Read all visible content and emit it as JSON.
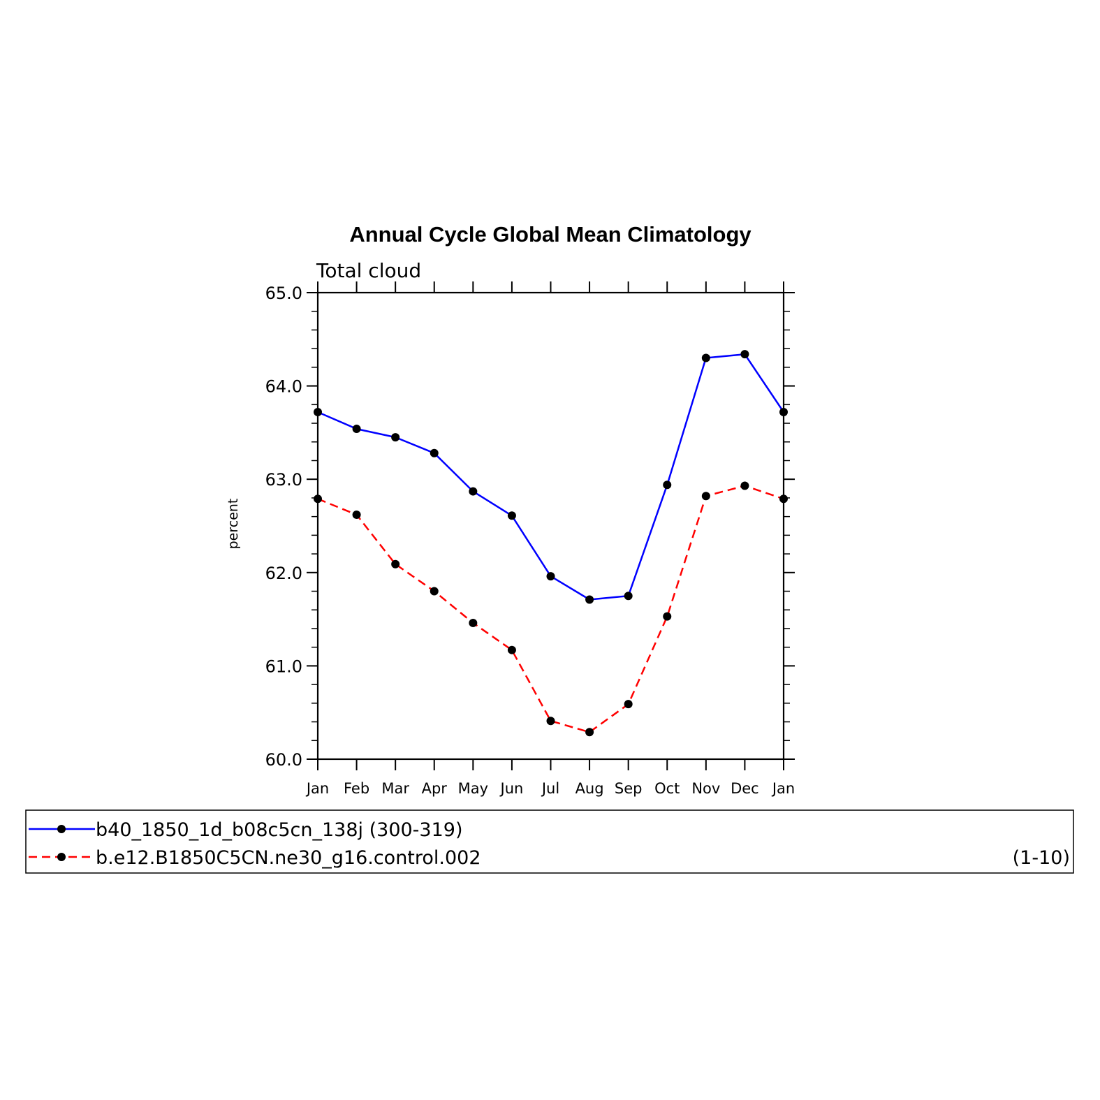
{
  "chart_data": {
    "type": "line",
    "title": "Annual Cycle Global Mean Climatology",
    "subtitle": "Total cloud",
    "xlabel": "",
    "ylabel": "percent",
    "categories": [
      "Jan",
      "Feb",
      "Mar",
      "Apr",
      "May",
      "Jun",
      "Jul",
      "Aug",
      "Sep",
      "Oct",
      "Nov",
      "Dec",
      "Jan"
    ],
    "ylim": [
      60.0,
      65.0
    ],
    "yticks": [
      "60.0",
      "61.0",
      "62.0",
      "63.0",
      "64.0",
      "65.0"
    ],
    "grid": false,
    "legend_position": "bottom",
    "series": [
      {
        "name": "b40_1850_1d_b08c5cn_138j (300-319)",
        "color": "#0000ff",
        "line_style": "solid",
        "marker": "filled-circle",
        "values": [
          63.72,
          63.54,
          63.45,
          63.28,
          62.87,
          62.61,
          61.96,
          61.71,
          61.75,
          62.94,
          64.3,
          64.34,
          63.72
        ]
      },
      {
        "name": "b.e12.B1850C5CN.ne30_g16.control.002",
        "years": "(1-10)",
        "color": "#ff0000",
        "line_style": "dashed",
        "marker": "filled-circle",
        "values": [
          62.79,
          62.62,
          62.09,
          61.8,
          61.46,
          61.17,
          60.41,
          60.29,
          60.59,
          61.53,
          62.82,
          62.93,
          62.79
        ]
      }
    ]
  }
}
